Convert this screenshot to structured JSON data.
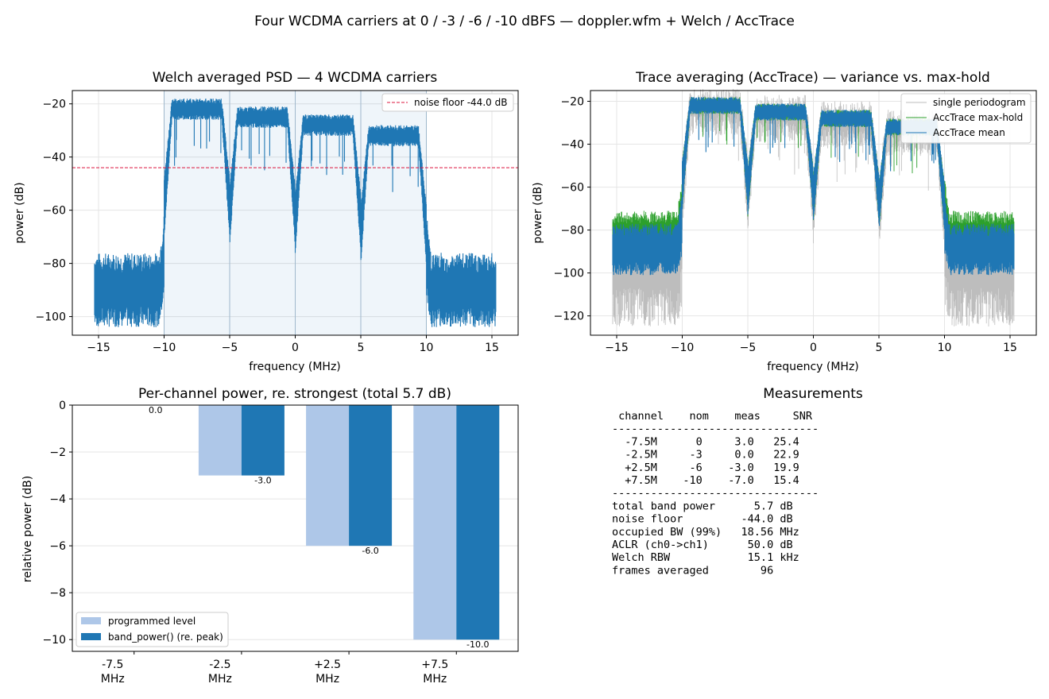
{
  "figure": {
    "suptitle": "Four WCDMA carriers at 0 / -3 / -6 / -10 dBFS — doppler.wfm + Welch / AccTrace"
  },
  "chart_data": [
    {
      "id": "welch",
      "type": "line",
      "title": "Welch averaged PSD — 4 WCDMA carriers",
      "xlabel": "frequency (MHz)",
      "ylabel": "power (dB)",
      "xlim": [
        -17,
        17
      ],
      "ylim": [
        -107,
        -15
      ],
      "xticks": [
        -15,
        -10,
        -5,
        0,
        5,
        10,
        15
      ],
      "yticks": [
        -20,
        -40,
        -60,
        -80,
        -100
      ],
      "grid": true,
      "legend_position": "upper-right",
      "shaded_band": [
        -10,
        10
      ],
      "channel_edges": [
        -5,
        0,
        5
      ],
      "noise_floor": {
        "value": -44.0,
        "label": "noise floor -44.0 dB",
        "color": "#dc143c"
      },
      "series": [
        {
          "color": "#1f77b4",
          "carriers": [
            {
              "center": -7.5,
              "top": -19,
              "bottom": -25
            },
            {
              "center": -2.5,
              "top": -22,
              "bottom": -28
            },
            {
              "center": 2.5,
              "top": -25,
              "bottom": -31
            },
            {
              "center": 7.5,
              "top": -29,
              "bottom": -35
            }
          ],
          "out_of_band": {
            "left_range": [
              -15.2,
              -10.2
            ],
            "right_range": [
              10.2,
              15.2
            ],
            "top": -80,
            "bottom": -100
          }
        }
      ]
    },
    {
      "id": "acctrace",
      "type": "line",
      "title": "Trace averaging (AccTrace) — variance vs. max-hold",
      "xlabel": "frequency (MHz)",
      "ylabel": "power (dB)",
      "xlim": [
        -17,
        17
      ],
      "ylim": [
        -129,
        -15
      ],
      "xticks": [
        -15,
        -10,
        -5,
        0,
        5,
        10,
        15
      ],
      "yticks": [
        -20,
        -40,
        -60,
        -80,
        -100,
        -120
      ],
      "grid": true,
      "legend_position": "upper-right",
      "series": [
        {
          "name": "single periodogram",
          "color": "#bdbdbd"
        },
        {
          "name": "AccTrace max-hold",
          "color": "#2ca02c"
        },
        {
          "name": "AccTrace mean",
          "color": "#1f77b4"
        }
      ]
    },
    {
      "id": "channels",
      "type": "bar",
      "title": "Per-channel power, re. strongest  (total 5.7 dB)",
      "ylabel": "relative power (dB)",
      "categories": [
        "-7.5\nMHz",
        "-2.5\nMHz",
        "+2.5\nMHz",
        "+7.5\nMHz"
      ],
      "ylim": [
        -10.5,
        0
      ],
      "yticks": [
        0,
        -2,
        -4,
        -6,
        -8,
        -10
      ],
      "grid": true,
      "legend_position": "lower-left",
      "series": [
        {
          "name": "programmed level",
          "color": "#aec7e8",
          "values": [
            0,
            -3,
            -6,
            -10
          ]
        },
        {
          "name": "band_power() (re. peak)",
          "color": "#1f77b4",
          "values": [
            0.0,
            -3.0,
            -6.0,
            -10.0
          ]
        }
      ],
      "data_labels": [
        "0.0",
        "-3.0",
        "-6.0",
        "-10.0"
      ]
    }
  ],
  "measurements": {
    "title": "Measurements",
    "lines": [
      " channel    nom    meas     SNR",
      "--------------------------------",
      "  -7.5M      0     3.0   25.4",
      "  -2.5M     -3     0.0   22.9",
      "  +2.5M     -6    -3.0   19.9",
      "  +7.5M    -10    -7.0   15.4",
      "--------------------------------",
      "total band power      5.7 dB",
      "noise floor         -44.0 dB",
      "occupied BW (99%)   18.56 MHz",
      "ACLR (ch0->ch1)      50.0 dB",
      "Welch RBW            15.1 kHz",
      "frames averaged        96"
    ]
  }
}
